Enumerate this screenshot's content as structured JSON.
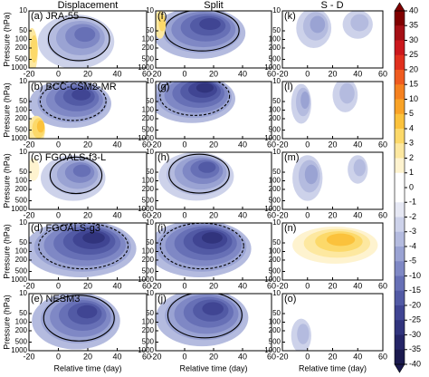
{
  "chart_data": {
    "type": "contour",
    "columns": [
      "Displacement",
      "Split",
      "S - D"
    ],
    "rows": [
      "JRA-55",
      "BCC-CSM2-MR",
      "FGOALS-f3-L",
      "FGOALS-g3",
      "NESM3"
    ],
    "panel_labels": [
      "(a)",
      "(b)",
      "(c)",
      "(d)",
      "(e)",
      "(f)",
      "(g)",
      "(h)",
      "(i)",
      "(j)",
      "(k)",
      "(l)",
      "(m)",
      "(n)",
      "(o)"
    ],
    "xlabel": "Relative time (day)",
    "ylabel": "Pressure (hPa)",
    "xlim": [
      -20,
      60
    ],
    "xticks": [
      -20,
      0,
      20,
      40,
      60
    ],
    "ylim": [
      1000,
      10
    ],
    "yticks": [
      10,
      50,
      100,
      200,
      500,
      1000
    ],
    "ylog": true,
    "colorbar": {
      "ticks": [
        40,
        35,
        30,
        25,
        20,
        15,
        10,
        5,
        4,
        3,
        2,
        1,
        0,
        -1,
        -2,
        -3,
        -4,
        -5,
        -10,
        -15,
        -20,
        -25,
        -30,
        -35,
        -40
      ],
      "colors": [
        "#800000",
        "#a50f15",
        "#cb181d",
        "#e0301e",
        "#ef5b1f",
        "#f5811f",
        "#f9a327",
        "#fbc23c",
        "#fcd96a",
        "#fde8a0",
        "#fef3cf",
        "#ffffff",
        "#ffffff",
        "#e6e8f4",
        "#cdd2ea",
        "#b4bbdf",
        "#9aa3d3",
        "#7f88c5",
        "#6770b6",
        "#525aa5",
        "#404593",
        "#31347d",
        "#252567",
        "#1b1a4f"
      ]
    }
  }
}
